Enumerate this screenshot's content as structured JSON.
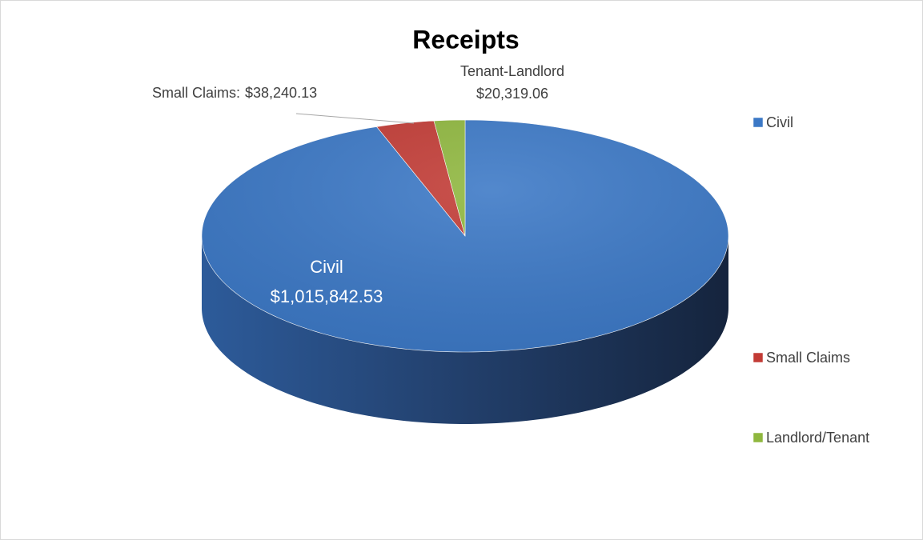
{
  "chart_data": {
    "type": "pie3d",
    "title": "Receipts",
    "categories": [
      "Civil",
      "Small Claims",
      "Landlord/Tenant"
    ],
    "values": [
      1015842.53,
      38240.13,
      20319.06
    ],
    "value_labels": [
      "$1,015,842.53",
      "$38,240.13",
      "$20,319.06"
    ],
    "label_names": [
      "Civil",
      "Small Claims:",
      "Tenant-Landlord"
    ],
    "colors": [
      "#3b78c6",
      "#c23b35",
      "#8fb73e"
    ],
    "legend": "right"
  }
}
